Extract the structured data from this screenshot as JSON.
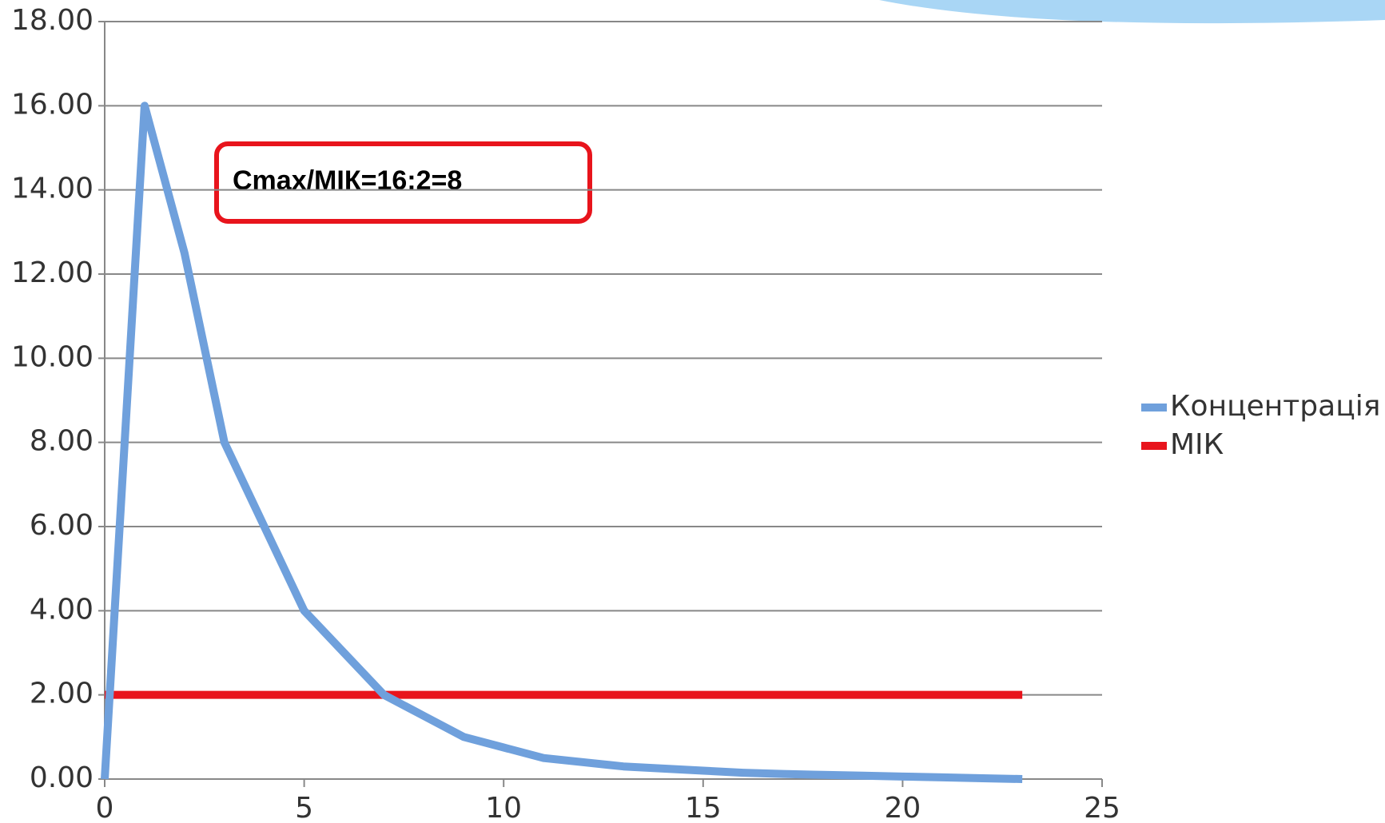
{
  "chart_data": {
    "type": "line",
    "annotation": "Cmax/МІК=16:2=8",
    "x": [
      0,
      1,
      2,
      3,
      4,
      5,
      6,
      7,
      8,
      9,
      10,
      11,
      12,
      13,
      14,
      15,
      16,
      17,
      18,
      19,
      20,
      21,
      22,
      23
    ],
    "series": [
      {
        "name": "Концентрація",
        "color": "#6fa0dc",
        "values": [
          0,
          16,
          12.5,
          8,
          6,
          4,
          3,
          2,
          1.5,
          1,
          0.75,
          0.5,
          0.4,
          0.3,
          0.25,
          0.2,
          0.15,
          0.12,
          0.1,
          0.08,
          0.06,
          0.04,
          0.02,
          0
        ]
      },
      {
        "name": "МІК",
        "color": "#e8141c",
        "values": [
          2,
          2,
          2,
          2,
          2,
          2,
          2,
          2,
          2,
          2,
          2,
          2,
          2,
          2,
          2,
          2,
          2,
          2,
          2,
          2,
          2,
          2,
          2,
          2
        ]
      }
    ],
    "xlim": [
      0,
      25
    ],
    "xticks": [
      0,
      5,
      10,
      15,
      20,
      25
    ],
    "ylim": [
      0,
      18
    ],
    "yticks": [
      {
        "value": 0,
        "label": "0.00"
      },
      {
        "value": 2,
        "label": "2.00"
      },
      {
        "value": 4,
        "label": "4.00"
      },
      {
        "value": 6,
        "label": "6.00"
      },
      {
        "value": 8,
        "label": "8.00"
      },
      {
        "value": 10,
        "label": "10.00"
      },
      {
        "value": 12,
        "label": "12.00"
      },
      {
        "value": 14,
        "label": "14.00"
      },
      {
        "value": 16,
        "label": "16.00"
      },
      {
        "value": 18,
        "label": "18.00"
      }
    ],
    "grid": true,
    "legend": "right"
  }
}
